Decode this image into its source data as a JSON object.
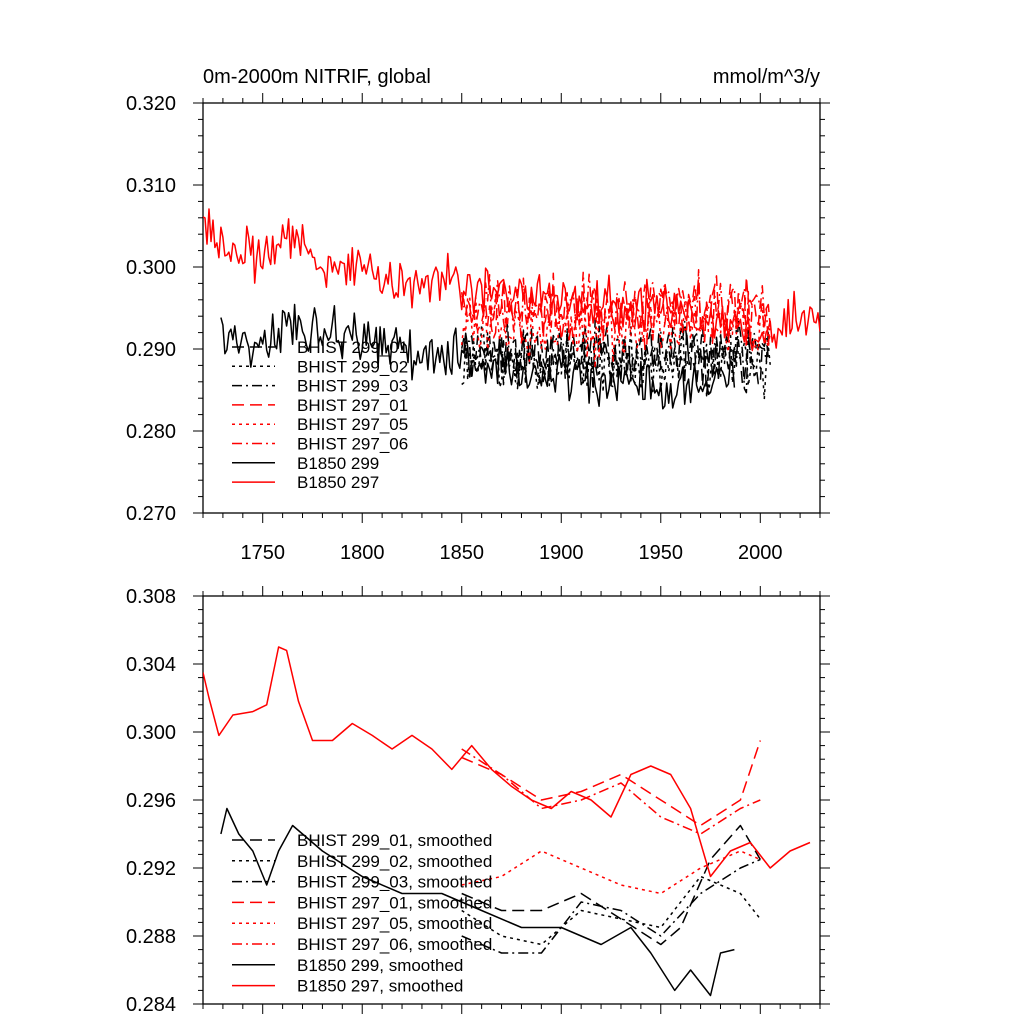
{
  "colors": {
    "black": "#000000",
    "red": "#ff0000"
  },
  "chart_data": [
    {
      "type": "line",
      "title": "0m-2000m NITRIF, global",
      "units": "mmol/m^3/y",
      "xlim": [
        1720,
        2030
      ],
      "ylim": [
        0.27,
        0.32
      ],
      "x_ticks": [
        "1750",
        "1800",
        "1850",
        "1900",
        "1950",
        "2000"
      ],
      "y_ticks": [
        "0.270",
        "0.280",
        "0.290",
        "0.300",
        "0.310",
        "0.320"
      ],
      "legend_position": "lower-left",
      "series": [
        {
          "name": "BHIST 299_01",
          "color": "#000000",
          "dash": "longdash",
          "x_start": 1850,
          "x_end": 2005,
          "base": 0.2895,
          "amp": 0.0055,
          "seed": 11
        },
        {
          "name": "BHIST 299_02",
          "color": "#000000",
          "dash": "dot",
          "x_start": 1850,
          "x_end": 2005,
          "base": 0.2885,
          "amp": 0.006,
          "seed": 23
        },
        {
          "name": "BHIST 299_03",
          "color": "#000000",
          "dash": "dashdot",
          "x_start": 1850,
          "x_end": 2005,
          "base": 0.2895,
          "amp": 0.0055,
          "seed": 37
        },
        {
          "name": "BHIST 297_01",
          "color": "#ff0000",
          "dash": "longdash",
          "x_start": 1850,
          "x_end": 2005,
          "base": 0.2945,
          "amp": 0.006,
          "seed": 41
        },
        {
          "name": "BHIST 297_05",
          "color": "#ff0000",
          "dash": "dot",
          "x_start": 1850,
          "x_end": 2005,
          "base": 0.2925,
          "amp": 0.0055,
          "seed": 53
        },
        {
          "name": "BHIST 297_06",
          "color": "#ff0000",
          "dash": "dashdot",
          "x_start": 1850,
          "x_end": 2005,
          "base": 0.295,
          "amp": 0.006,
          "seed": 67
        },
        {
          "name": "B1850 299",
          "color": "#000000",
          "dash": "solid",
          "x": [
            1729,
            1740,
            1760,
            1780,
            1800,
            1820,
            1840,
            1850,
            1860,
            1880,
            1900,
            1920,
            1940,
            1960,
            1980,
            1987
          ],
          "y": [
            0.293,
            0.29,
            0.293,
            0.292,
            0.291,
            0.29,
            0.289,
            0.289,
            0.288,
            0.287,
            0.287,
            0.286,
            0.286,
            0.285,
            0.286,
            0.287
          ],
          "amp": 0.0045,
          "seed": 79
        },
        {
          "name": "B1850 297",
          "color": "#ff0000",
          "dash": "solid",
          "x": [
            1720,
            1730,
            1750,
            1765,
            1780,
            1800,
            1820,
            1840,
            1860,
            1880,
            1900,
            1920,
            1940,
            1960,
            1980,
            2000,
            2030
          ],
          "y": [
            0.306,
            0.302,
            0.301,
            0.304,
            0.3,
            0.3,
            0.298,
            0.298,
            0.297,
            0.296,
            0.296,
            0.295,
            0.295,
            0.295,
            0.293,
            0.293,
            0.294
          ],
          "amp": 0.0045,
          "seed": 83
        }
      ]
    },
    {
      "type": "line",
      "title": "",
      "xlim": [
        1720,
        2030
      ],
      "ylim": [
        0.284,
        0.308
      ],
      "x_ticks": [],
      "y_ticks": [
        "0.284",
        "0.288",
        "0.292",
        "0.296",
        "0.300",
        "0.304",
        "0.308"
      ],
      "legend_position": "lower-left",
      "series": [
        {
          "name": "BHIST 299_01, smoothed",
          "color": "#000000",
          "dash": "longdash",
          "x": [
            1850,
            1870,
            1890,
            1910,
            1930,
            1950,
            1960,
            1975,
            1990,
            2000
          ],
          "y": [
            0.2905,
            0.2895,
            0.2895,
            0.2905,
            0.289,
            0.2875,
            0.2885,
            0.2925,
            0.2945,
            0.2925
          ]
        },
        {
          "name": "BHIST 299_02, smoothed",
          "color": "#000000",
          "dash": "dot",
          "x": [
            1850,
            1870,
            1890,
            1910,
            1930,
            1950,
            1970,
            1990,
            2000
          ],
          "y": [
            0.2895,
            0.288,
            0.2875,
            0.2895,
            0.289,
            0.2885,
            0.2915,
            0.2905,
            0.289
          ]
        },
        {
          "name": "BHIST 299_03, smoothed",
          "color": "#000000",
          "dash": "dashdot",
          "x": [
            1850,
            1870,
            1890,
            1910,
            1930,
            1950,
            1970,
            1990,
            2000
          ],
          "y": [
            0.288,
            0.287,
            0.287,
            0.29,
            0.2895,
            0.288,
            0.2905,
            0.292,
            0.2925
          ]
        },
        {
          "name": "BHIST 297_01, smoothed",
          "color": "#ff0000",
          "dash": "longdash",
          "x": [
            1850,
            1870,
            1890,
            1910,
            1930,
            1950,
            1970,
            1990,
            2000
          ],
          "y": [
            0.2985,
            0.2975,
            0.296,
            0.2965,
            0.2975,
            0.296,
            0.2945,
            0.296,
            0.2995
          ]
        },
        {
          "name": "BHIST 297_05, smoothed",
          "color": "#ff0000",
          "dash": "dot",
          "x": [
            1850,
            1870,
            1890,
            1910,
            1930,
            1950,
            1970,
            1990,
            2000
          ],
          "y": [
            0.291,
            0.2915,
            0.293,
            0.292,
            0.291,
            0.2905,
            0.292,
            0.293,
            0.2925
          ]
        },
        {
          "name": "BHIST 297_06, smoothed",
          "color": "#ff0000",
          "dash": "dashdot",
          "x": [
            1850,
            1870,
            1890,
            1910,
            1930,
            1950,
            1970,
            1990,
            2000
          ],
          "y": [
            0.299,
            0.2975,
            0.2955,
            0.296,
            0.297,
            0.295,
            0.294,
            0.2955,
            0.296
          ]
        },
        {
          "name": "B1850 299, smoothed",
          "color": "#000000",
          "dash": "solid",
          "x": [
            1729,
            1732,
            1738,
            1745,
            1752,
            1758,
            1765,
            1780,
            1800,
            1820,
            1840,
            1860,
            1880,
            1900,
            1920,
            1935,
            1945,
            1957,
            1965,
            1975,
            1980,
            1987
          ],
          "y": [
            0.294,
            0.2955,
            0.294,
            0.293,
            0.291,
            0.293,
            0.2945,
            0.293,
            0.2915,
            0.2905,
            0.2905,
            0.2895,
            0.2885,
            0.2885,
            0.2875,
            0.2885,
            0.287,
            0.2848,
            0.286,
            0.2845,
            0.287,
            0.2872
          ]
        },
        {
          "name": "B1850 297, smoothed",
          "color": "#ff0000",
          "dash": "solid",
          "x": [
            1720,
            1723,
            1728,
            1735,
            1745,
            1752,
            1758,
            1762,
            1768,
            1775,
            1785,
            1795,
            1805,
            1815,
            1825,
            1835,
            1845,
            1855,
            1865,
            1875,
            1885,
            1895,
            1905,
            1915,
            1925,
            1935,
            1945,
            1955,
            1965,
            1975,
            1985,
            1995,
            2005,
            2015,
            2025
          ],
          "y": [
            0.3035,
            0.302,
            0.2998,
            0.301,
            0.3012,
            0.3016,
            0.305,
            0.3048,
            0.3018,
            0.2995,
            0.2995,
            0.3005,
            0.2998,
            0.299,
            0.2998,
            0.299,
            0.2978,
            0.2992,
            0.2978,
            0.2968,
            0.296,
            0.2955,
            0.2965,
            0.296,
            0.295,
            0.2975,
            0.298,
            0.2975,
            0.2955,
            0.2915,
            0.293,
            0.2935,
            0.292,
            0.293,
            0.2935
          ]
        }
      ]
    }
  ]
}
